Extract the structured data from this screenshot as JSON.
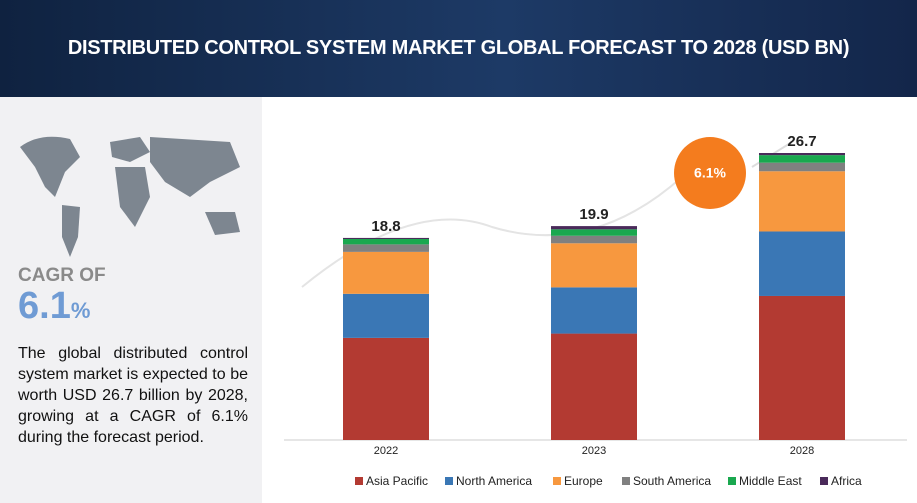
{
  "header": {
    "title": "DISTRIBUTED CONTROL SYSTEM MARKET GLOBAL FORECAST TO 2028 (USD BN)"
  },
  "sidebar": {
    "cagr_label": "CAGR OF",
    "cagr_value": "6.1",
    "cagr_unit": "%",
    "description": "The global distributed control system market is expected to be worth USD 26.7 billion by 2028, growing at a CAGR of 6.1% during the forecast period."
  },
  "chart_data": {
    "type": "stacked_bar",
    "categories": [
      "2022",
      "2023",
      "2028"
    ],
    "series": [
      {
        "name": "Asia Pacific",
        "color": "#b33a32",
        "values": [
          9.5,
          9.9,
          13.4
        ]
      },
      {
        "name": "North America",
        "color": "#3a77b5",
        "values": [
          4.1,
          4.3,
          6.0
        ]
      },
      {
        "name": "Europe",
        "color": "#f7983f",
        "values": [
          3.9,
          4.1,
          5.6
        ]
      },
      {
        "name": "South America",
        "color": "#808080",
        "values": [
          0.7,
          0.7,
          0.8
        ]
      },
      {
        "name": "Middle East",
        "color": "#1aa84f",
        "values": [
          0.5,
          0.6,
          0.7
        ]
      },
      {
        "name": "Africa",
        "color": "#4a2a5a",
        "values": [
          0.1,
          0.3,
          0.2
        ]
      }
    ],
    "totals": [
      18.8,
      19.9,
      26.7
    ],
    "cagr_badge": "6.1%"
  }
}
